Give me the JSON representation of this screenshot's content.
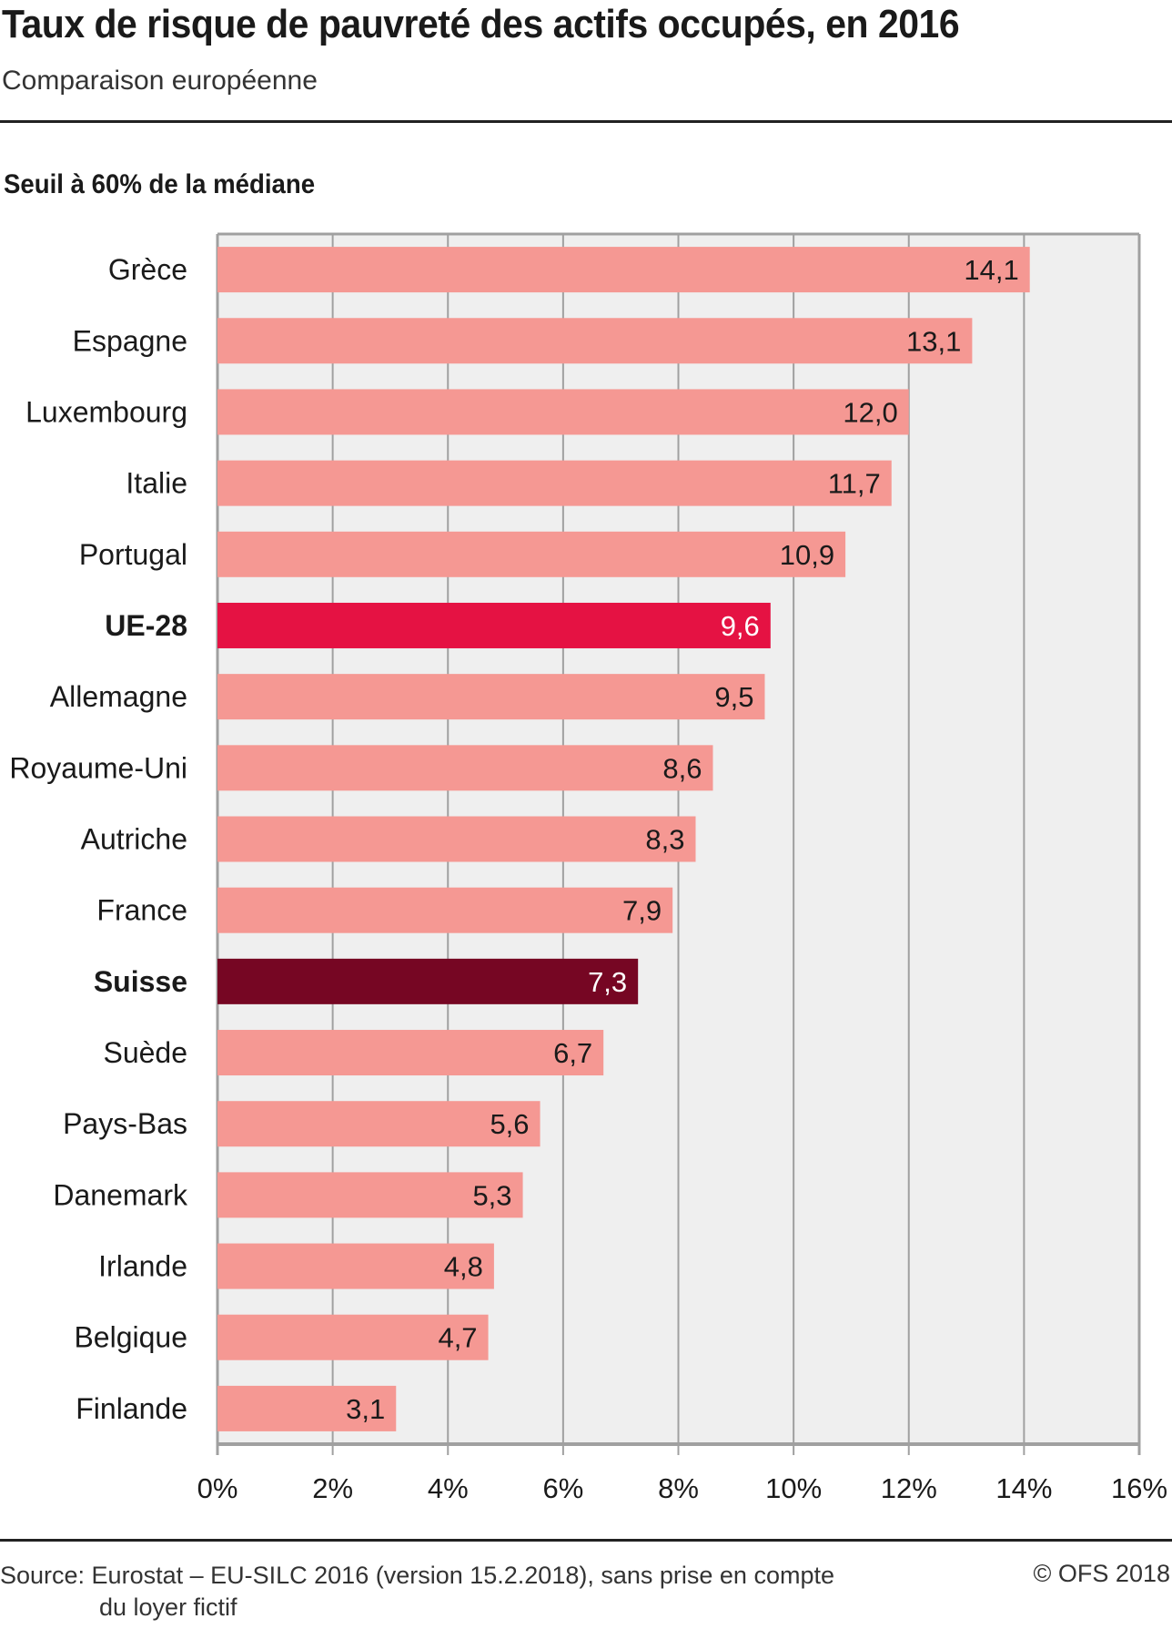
{
  "header": {
    "title": "Taux de risque de pauvreté des actifs occupés, en 2016",
    "subtitle": "Comparaison européenne",
    "section": "Seuil à 60% de la médiane"
  },
  "footer": {
    "source_line1": "Source: Eurostat – EU-SILC 2016 (version 15.2.2018), sans prise en compte",
    "source_line2": "du loyer fictif",
    "copyright": "© OFS 2018"
  },
  "colors": {
    "default_bar": "#f59893",
    "eu_bar": "#e51243",
    "swiss_bar": "#760623",
    "plot_background": "#efefef",
    "gridline": "#a0a0a0"
  },
  "chart_data": {
    "type": "bar",
    "orientation": "horizontal",
    "title": "Taux de risque de pauvreté des actifs occupés, en 2016",
    "subtitle": "Comparaison européenne",
    "xlabel": "",
    "ylabel": "",
    "xlim": [
      0,
      16
    ],
    "x_ticks": [
      0,
      2,
      4,
      6,
      8,
      10,
      12,
      14,
      16
    ],
    "x_tick_labels": [
      "0%",
      "2%",
      "4%",
      "6%",
      "8%",
      "10%",
      "12%",
      "14%",
      "16%"
    ],
    "grid": true,
    "categories": [
      "Grèce",
      "Espagne",
      "Luxembourg",
      "Italie",
      "Portugal",
      "UE-28",
      "Allemagne",
      "Royaume-Uni",
      "Autriche",
      "France",
      "Suisse",
      "Suède",
      "Pays-Bas",
      "Danemark",
      "Irlande",
      "Belgique",
      "Finlande"
    ],
    "values": [
      14.1,
      13.1,
      12.0,
      11.7,
      10.9,
      9.6,
      9.5,
      8.6,
      8.3,
      7.9,
      7.3,
      6.7,
      5.6,
      5.3,
      4.8,
      4.7,
      3.1
    ],
    "value_labels": [
      "14,1",
      "13,1",
      "12,0",
      "11,7",
      "10,9",
      "9,6",
      "9,5",
      "8,6",
      "8,3",
      "7,9",
      "7,3",
      "6,7",
      "5,6",
      "5,3",
      "4,8",
      "4,7",
      "3,1"
    ],
    "highlight": {
      "UE-28": "eu",
      "Suisse": "swiss"
    }
  }
}
